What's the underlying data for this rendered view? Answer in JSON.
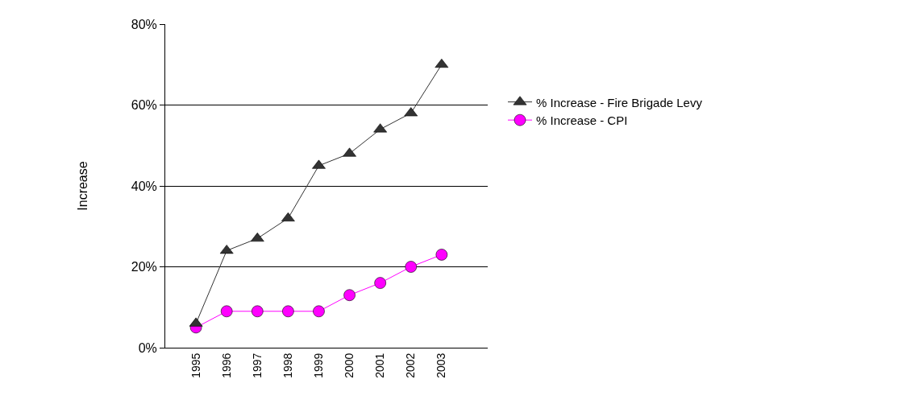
{
  "chart_data": {
    "type": "line",
    "ylabel": "Increase",
    "categories": [
      "1995",
      "1996",
      "1997",
      "1998",
      "1999",
      "2000",
      "2001",
      "2002",
      "2003"
    ],
    "series": [
      {
        "name": "% Increase - Fire Brigade Levy",
        "color": "#333333",
        "marker": "triangle",
        "values": [
          6,
          24,
          27,
          32,
          45,
          48,
          54,
          58,
          70
        ]
      },
      {
        "name": "% Increase - CPI",
        "color": "#ff00ff",
        "marker": "circle",
        "values": [
          5,
          9,
          9,
          9,
          9,
          13,
          16,
          20,
          23
        ]
      }
    ],
    "ylim": [
      0,
      80
    ],
    "yticks": [
      {
        "value": 0,
        "label": "0%"
      },
      {
        "value": 20,
        "label": "20%"
      },
      {
        "value": 40,
        "label": "40%"
      },
      {
        "value": 60,
        "label": "60%"
      },
      {
        "value": 80,
        "label": "80%"
      }
    ],
    "grid": "y",
    "legend": "right"
  }
}
